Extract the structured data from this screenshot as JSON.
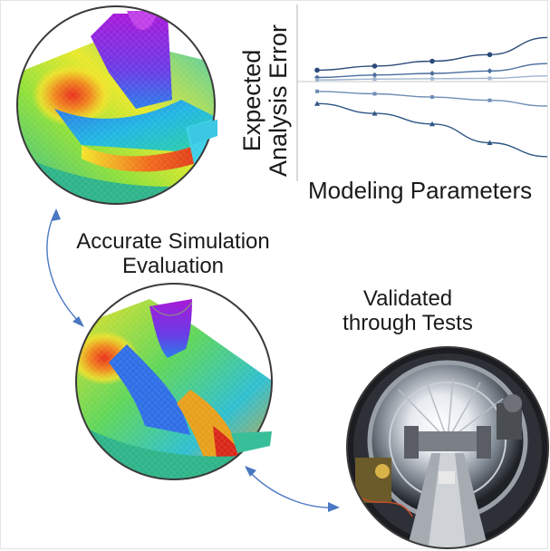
{
  "labels": {
    "simulation_line1": "Accurate Simulation",
    "simulation_line2": "Evaluation",
    "tests_line1": "Validated",
    "tests_line2": "through Tests"
  },
  "chart_data": {
    "type": "line",
    "xlabel": "Modeling Parameters",
    "ylabel_line1": "Expected",
    "ylabel_line2": "Analysis Error",
    "x": [
      0,
      1,
      2,
      3,
      4
    ],
    "xlim": [
      0,
      4
    ],
    "ylim": [
      -1,
      1
    ],
    "grid": false,
    "series": [
      {
        "values": [
          0.14,
          0.19,
          0.25,
          0.33,
          0.54
        ],
        "color": "#2b4a7a",
        "marker": "circle"
      },
      {
        "values": [
          0.05,
          0.08,
          0.1,
          0.13,
          0.22
        ],
        "color": "#4a6d9e",
        "marker": "diamond"
      },
      {
        "values": [
          0.02,
          0.03,
          0.035,
          0.04,
          0.07
        ],
        "color": "#9fb4cf",
        "marker": "square"
      },
      {
        "values": [
          -0.12,
          -0.15,
          -0.19,
          -0.23,
          -0.3
        ],
        "color": "#6f8db5",
        "marker": "square"
      },
      {
        "values": [
          -0.27,
          -0.39,
          -0.52,
          -0.75,
          -0.92
        ],
        "color": "#2f5585",
        "marker": "triangle"
      }
    ]
  },
  "colors": {
    "arrow": "#4a78c2",
    "circle_border": "#3a3a3a",
    "zero_line": "#c8c8c8"
  },
  "icons": [
    "simulation-mesh-top",
    "simulation-mesh-bottom",
    "test-rig-photo",
    "double-arrow-icon"
  ]
}
